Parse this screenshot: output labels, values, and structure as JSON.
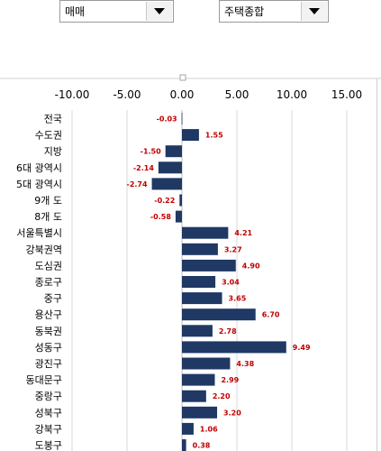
{
  "filters": {
    "trade_type": "매매",
    "housing_type": "주택종합"
  },
  "colors": {
    "bar": "#1f3864",
    "data_label": "#c00000",
    "grid": "#d9d9d9"
  },
  "chart_data": {
    "type": "bar",
    "orientation": "horizontal",
    "xlim": [
      -10,
      15
    ],
    "xticks": [
      "-10.00",
      "-5.00",
      "0.00",
      "5.00",
      "10.00",
      "15.00"
    ],
    "xtick_values": [
      -10,
      -5,
      0,
      5,
      10,
      15
    ],
    "grid": true,
    "legend": "none",
    "categories": [
      "전국",
      "수도권",
      "지방",
      "6대 광역시",
      "5대 광역시",
      "9개 도",
      "8개 도",
      "서울특별시",
      "강북권역",
      "도심권",
      "종로구",
      "중구",
      "용산구",
      "동북권",
      "성동구",
      "광진구",
      "동대문구",
      "중랑구",
      "성북구",
      "강북구",
      "도봉구"
    ],
    "values": [
      -0.03,
      1.55,
      -1.5,
      -2.14,
      -2.74,
      -0.22,
      -0.58,
      4.21,
      3.27,
      4.9,
      3.04,
      3.65,
      6.7,
      2.78,
      9.49,
      4.38,
      2.99,
      2.2,
      3.2,
      1.06,
      0.38
    ],
    "labels": [
      "-0.03",
      "1.55",
      "-1.50",
      "-2.14",
      "-2.74",
      "-0.22",
      "-0.58",
      "4.21",
      "3.27",
      "4.90",
      "3.04",
      "3.65",
      "6.70",
      "2.78",
      "9.49",
      "4.38",
      "2.99",
      "2.20",
      "3.20",
      "1.06",
      "0.38"
    ]
  }
}
